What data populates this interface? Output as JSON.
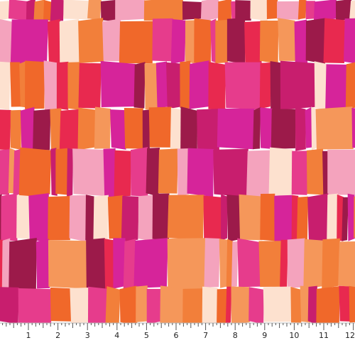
{
  "ruler": {
    "labels": [
      "1",
      "2",
      "3",
      "4",
      "5",
      "6",
      "7",
      "8",
      "9",
      "10",
      "11",
      "12"
    ]
  }
}
